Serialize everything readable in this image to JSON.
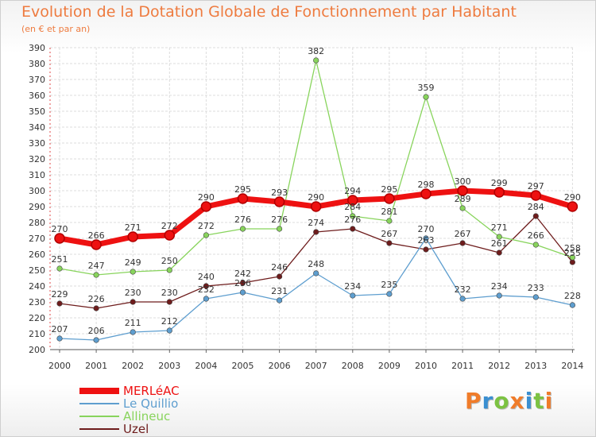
{
  "title": "Evolution de la Dotation Globale de Fonctionnement par Habitant",
  "subtitle": "(en € et par an)",
  "brand": {
    "letters": [
      {
        "char": "P",
        "color": "#f07c2a"
      },
      {
        "char": "r",
        "color": "#3a8fd1"
      },
      {
        "char": "o",
        "color": "#7cc242"
      },
      {
        "char": "x",
        "color": "#f07c2a"
      },
      {
        "char": "i",
        "color": "#3a8fd1"
      },
      {
        "char": "t",
        "color": "#7cc242"
      },
      {
        "char": "i",
        "color": "#f07c2a"
      }
    ]
  },
  "chart_data": {
    "type": "line",
    "x": [
      "2000",
      "2001",
      "2002",
      "2003",
      "2004",
      "2005",
      "2006",
      "2007",
      "2008",
      "2009",
      "2010",
      "2011",
      "2012",
      "2013",
      "2014"
    ],
    "ylim": [
      200,
      390
    ],
    "ystep": 10,
    "grid": true,
    "legend_position": "bottom-left",
    "series": [
      {
        "name": "Uzel",
        "color": "#6e1c1c",
        "values": [
          229,
          226,
          230,
          230,
          240,
          242,
          246,
          274,
          276,
          267,
          263,
          267,
          261,
          284,
          255
        ],
        "labels": [
          "229",
          "226",
          "230",
          "230",
          "240",
          "242",
          "246",
          "274",
          "276",
          "267",
          "263",
          "267",
          "261",
          "284",
          "255"
        ]
      },
      {
        "name": "Allineuc",
        "color": "#88d45c",
        "values": [
          251,
          247,
          249,
          250,
          272,
          276,
          276,
          382,
          284,
          281,
          359,
          289,
          271,
          266,
          258
        ],
        "labels": [
          "251",
          "247",
          "249",
          "250",
          "272",
          "276",
          "276",
          "382",
          "284",
          "281",
          "359",
          "289",
          "271",
          "266",
          "258"
        ]
      },
      {
        "name": "Le Quillio",
        "color": "#5e9ecf",
        "values": [
          207,
          206,
          211,
          212,
          232,
          236,
          231,
          248,
          234,
          235,
          270,
          232,
          234,
          233,
          228
        ],
        "labels": [
          "207",
          "206",
          "211",
          "212",
          "232",
          "236",
          "231",
          "248",
          "234",
          "235",
          "270",
          "232",
          "234",
          "233",
          "228"
        ]
      },
      {
        "name": "MERLéAC",
        "color": "#ee1111",
        "values": [
          270,
          266,
          271,
          272,
          290,
          295,
          293,
          290,
          294,
          295,
          298,
          300,
          299,
          297,
          290
        ],
        "labels": [
          "270",
          "266",
          "271",
          "272",
          "290",
          "295",
          "293",
          "290",
          "294",
          "295",
          "298",
          "300",
          "299",
          "297",
          "290"
        ]
      }
    ],
    "legend": [
      "MERLéAC",
      "Le Quillio",
      "Allineuc",
      "Uzel"
    ]
  }
}
